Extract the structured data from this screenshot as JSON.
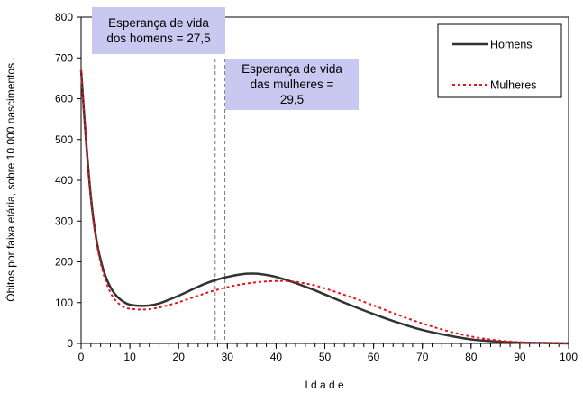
{
  "chart_data": {
    "type": "line",
    "xlabel": "I d a d e",
    "ylabel": "Óbitos por faixa etária, sobre 10.000 nascimentos .",
    "xlim": [
      0,
      100
    ],
    "ylim": [
      0,
      800
    ],
    "x_ticks": [
      0,
      10,
      20,
      30,
      40,
      50,
      60,
      70,
      80,
      90,
      100
    ],
    "y_ticks": [
      0,
      100,
      200,
      300,
      400,
      500,
      600,
      700,
      800
    ],
    "grid": false,
    "legend_position": "top-right",
    "x": [
      0,
      1,
      2,
      3,
      4,
      5,
      6,
      7,
      8,
      9,
      10,
      12,
      14,
      16,
      18,
      20,
      22,
      24,
      26,
      28,
      30,
      32,
      34,
      36,
      38,
      40,
      42,
      44,
      46,
      48,
      50,
      55,
      60,
      65,
      70,
      75,
      80,
      85,
      90,
      95,
      100
    ],
    "series": [
      {
        "name": "Homens",
        "color": "#333333",
        "dash": "solid",
        "values": [
          670,
          500,
          360,
          265,
          205,
          165,
          138,
          120,
          108,
          100,
          95,
          92,
          93,
          98,
          107,
          117,
          128,
          139,
          149,
          157,
          163,
          168,
          171,
          171,
          168,
          163,
          156,
          148,
          139,
          130,
          120,
          95,
          72,
          51,
          33,
          20,
          10,
          5,
          2,
          1,
          0
        ]
      },
      {
        "name": "Mulheres",
        "color": "#e8141a",
        "dash": "dashed",
        "values": [
          670,
          495,
          355,
          260,
          198,
          155,
          125,
          106,
          95,
          88,
          85,
          83,
          84,
          88,
          94,
          101,
          109,
          117,
          125,
          132,
          138,
          143,
          147,
          150,
          152,
          153,
          153,
          151,
          147,
          142,
          135,
          115,
          93,
          70,
          49,
          31,
          17,
          8,
          3,
          1,
          0
        ]
      }
    ],
    "reference_lines": [
      {
        "x": 27.5,
        "label": "Esperança de vida dos homens = 27,5",
        "lines": [
          "Esperança de vida",
          "dos homens = 27,5"
        ]
      },
      {
        "x": 29.5,
        "label": "Esperança de vida das mulheres = 29,5",
        "lines": [
          "Esperança de vida",
          "das mulheres =",
          "29,5"
        ]
      }
    ],
    "annotation_color": "#c8c8f0"
  }
}
